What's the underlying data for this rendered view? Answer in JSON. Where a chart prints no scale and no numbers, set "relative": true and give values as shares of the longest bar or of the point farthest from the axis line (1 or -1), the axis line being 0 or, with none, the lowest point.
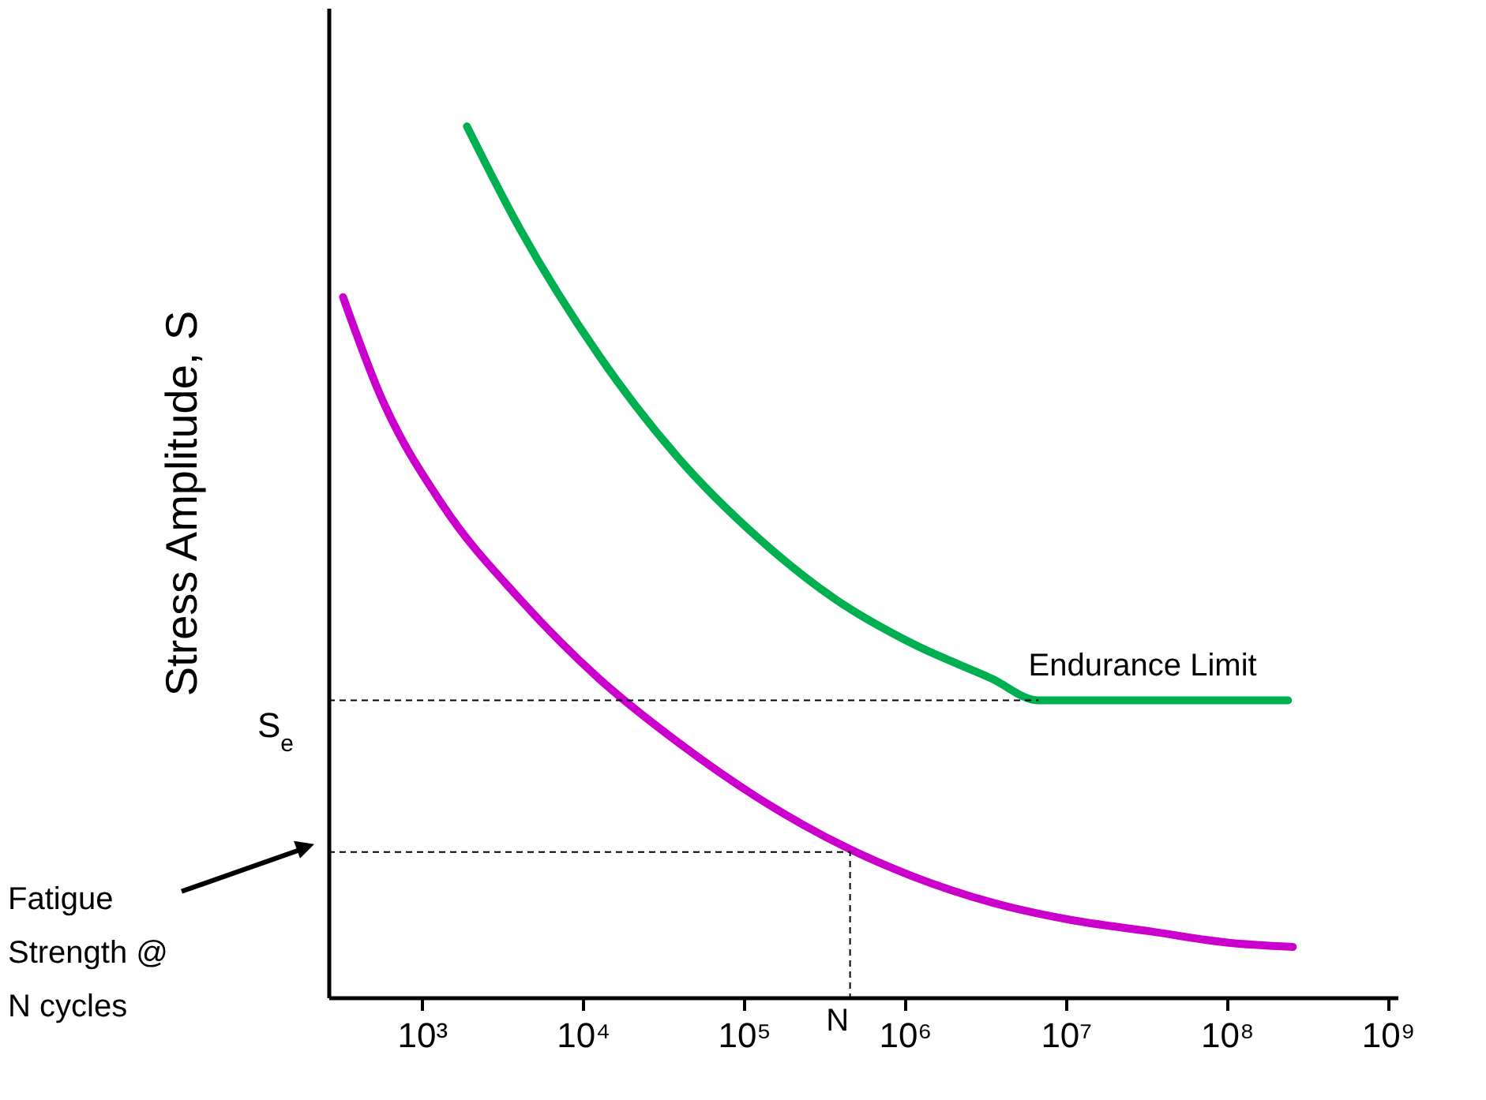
{
  "chart_data": {
    "type": "line",
    "ylabel": "Stress Amplitude, S",
    "relative": true,
    "log": "x",
    "tick_labels": "x",
    "grid": false,
    "marker": "none",
    "xlim": [
      263,
      1150000000
    ],
    "xticks": [
      {
        "value": 1000,
        "label": "10³"
      },
      {
        "value": 10000,
        "label": "10⁴"
      },
      {
        "value": 100000,
        "label": "10⁵"
      },
      {
        "value": 1000000,
        "label": "10⁶"
      },
      {
        "value": 10000000,
        "label": "10⁷"
      },
      {
        "value": 100000000,
        "label": "10⁸"
      },
      {
        "value": 1000000000,
        "label": "10⁹"
      }
    ],
    "series": [
      {
        "color": "#00b050",
        "line_style": "solid",
        "x": [
          1905,
          4074,
          12590,
          38900,
          120200,
          371500,
          1120000,
          3470000,
          6760000,
          240000000
        ],
        "values": [
          1,
          0.882,
          0.737,
          0.62,
          0.529,
          0.457,
          0.406,
          0.366,
          0.341,
          0.341
        ]
      },
      {
        "color": "#cc00cc",
        "line_style": "solid",
        "x": [
          324,
          550,
          1349,
          4074,
          12590,
          38900,
          120200,
          457000,
          1120000,
          3470000,
          10700000,
          33100000,
          100000000,
          257000000
        ],
        "values": [
          0.804,
          0.692,
          0.565,
          0.457,
          0.366,
          0.293,
          0.23,
          0.17,
          0.139,
          0.109,
          0.089,
          0.076,
          0.063,
          0.058
        ]
      },
      {
        "color": "#000000",
        "line_style": "dashed",
        "x": [
          263,
          6760000
        ],
        "values": [
          0.341,
          0.341
        ]
      },
      {
        "color": "#000000",
        "line_style": "dashed",
        "x": [
          263,
          457000,
          457000
        ],
        "values": [
          0.167,
          0.167,
          0
        ]
      }
    ],
    "annotations": [
      {
        "text": "Endurance Limit",
        "x": 30000000,
        "y": 0.341
      },
      "S$_{e}$",
      {
        "text": "N",
        "x": 457000,
        "y": 0
      },
      "Fatigue\nStrength @\nN cycles"
    ]
  }
}
